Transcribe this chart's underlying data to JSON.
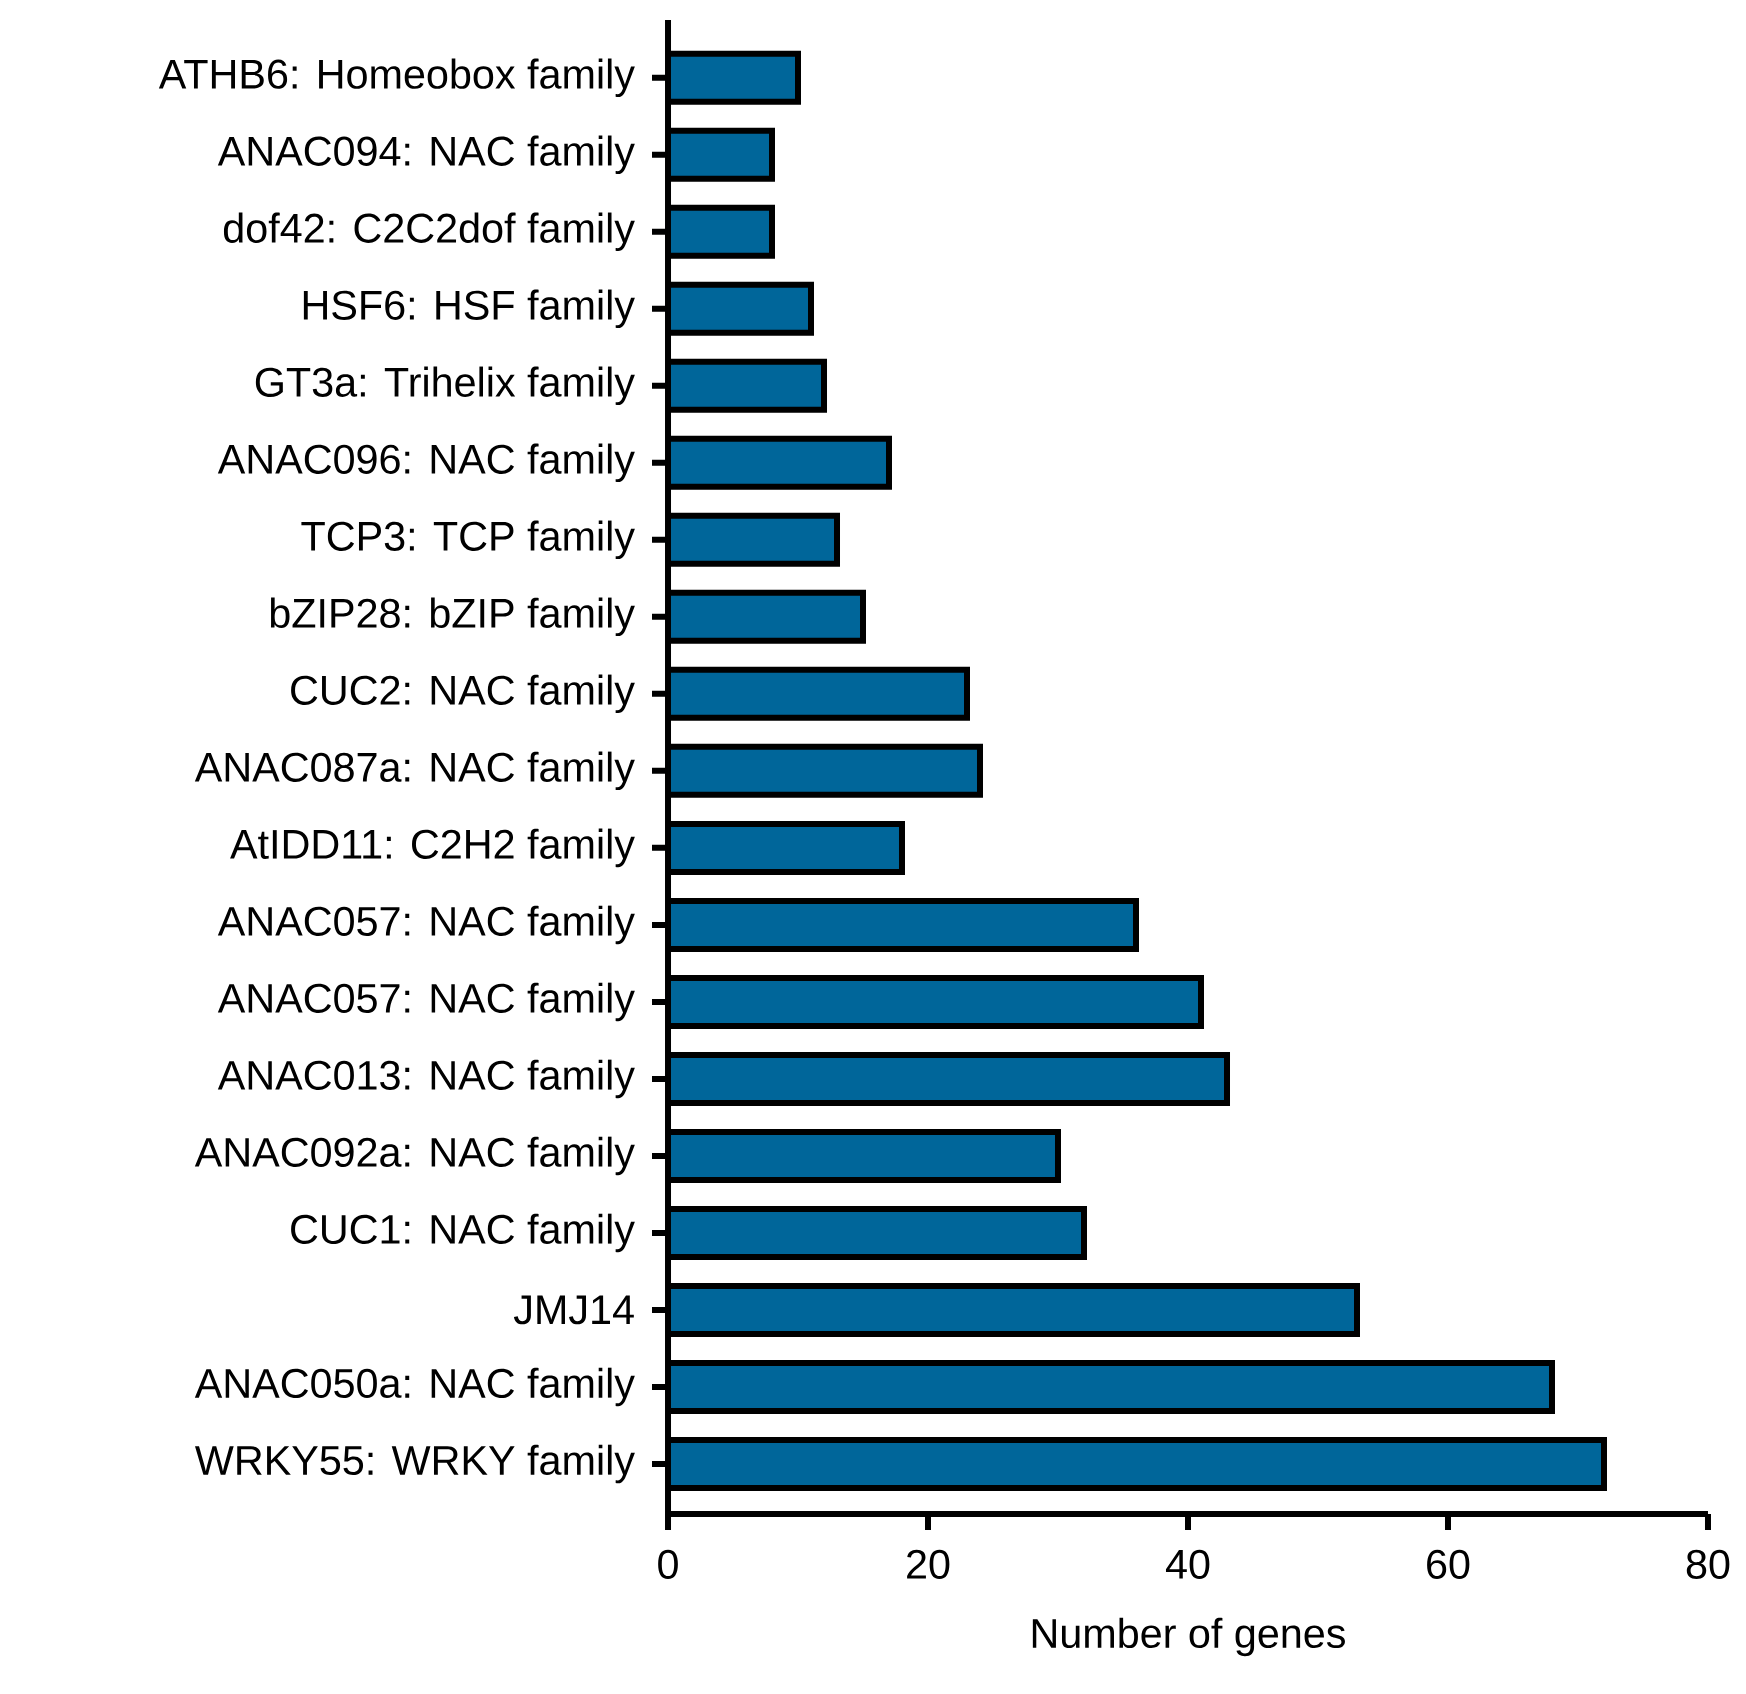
{
  "chart_data": {
    "type": "bar",
    "orientation": "horizontal",
    "xlabel": "Number of genes",
    "categories": [
      "ATHB6: Homeobox family",
      "ANAC094: NAC family",
      "dof42: C2C2dof family",
      "HSF6: HSF family",
      "GT3a: Trihelix family",
      "ANAC096: NAC family",
      "TCP3: TCP family",
      "bZIP28: bZIP family",
      "CUC2: NAC family",
      "ANAC087a: NAC family",
      "AtIDD11: C2H2 family",
      "ANAC057: NAC family",
      "ANAC057: NAC family",
      "ANAC013: NAC family",
      "ANAC092a: NAC family",
      "CUC1: NAC family",
      "JMJ14",
      "ANAC050a: NAC family",
      "WRKY55: WRKY family"
    ],
    "values": [
      10,
      8,
      8,
      11,
      12,
      17,
      13,
      15,
      23,
      24,
      18,
      36,
      41,
      43,
      30,
      32,
      53,
      68,
      72
    ],
    "color": "#00669a",
    "xlim": [
      0,
      80
    ],
    "xticks": [
      0,
      20,
      40,
      60,
      80
    ]
  }
}
